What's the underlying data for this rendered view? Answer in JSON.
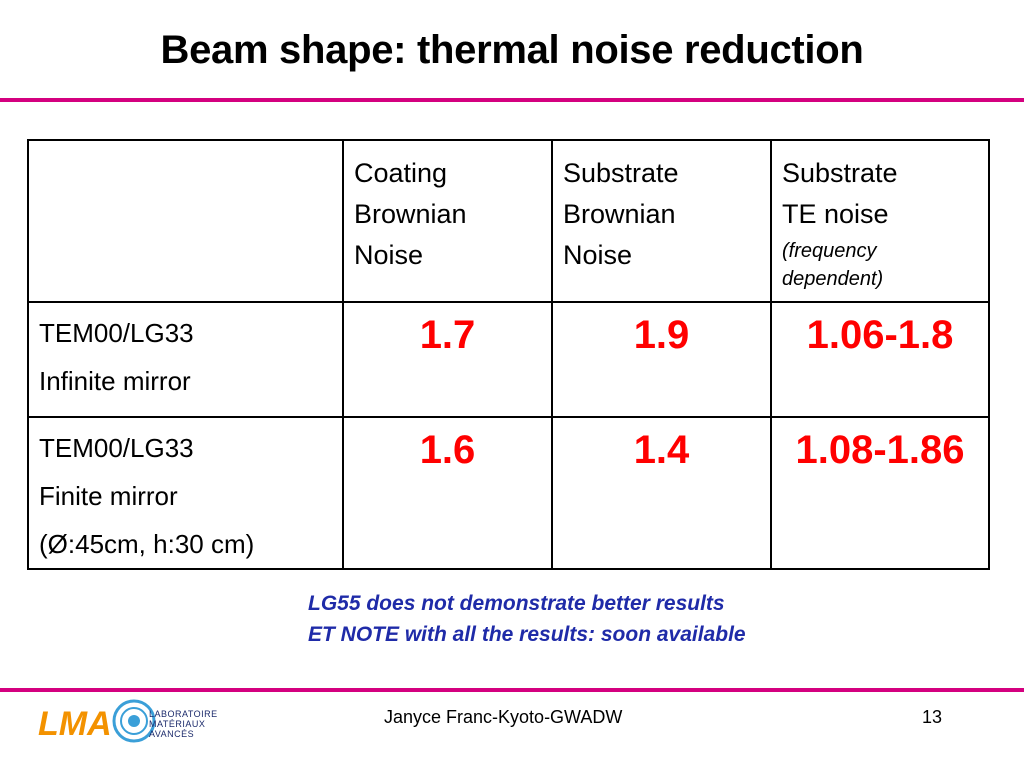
{
  "slide": {
    "title": "Beam shape: thermal noise reduction",
    "table": {
      "headers": [
        {
          "lines": [
            "Coating",
            "Brownian",
            "Noise"
          ]
        },
        {
          "lines": [
            "Substrate",
            "Brownian",
            "Noise"
          ]
        },
        {
          "lines": [
            "Substrate",
            "TE noise"
          ],
          "sub": [
            "(frequency",
            "dependent)"
          ]
        }
      ],
      "rows": [
        {
          "label": [
            "TEM00/LG33",
            "Infinite mirror"
          ],
          "values": [
            "1.7",
            "1.9",
            "1.06-1.8"
          ]
        },
        {
          "label": [
            "TEM00/LG33",
            "Finite mirror",
            "(Ø:45cm, h:30 cm)"
          ],
          "values": [
            "1.6",
            "1.4",
            "1.08-1.86"
          ]
        }
      ]
    },
    "notes": [
      "LG55 does not demonstrate better results",
      "ET NOTE with all the results: soon available"
    ],
    "footer": "Janyce Franc-Kyoto-GWADW",
    "page_number": "13",
    "logo": {
      "mark": "LMA",
      "lines": [
        "LABORATOIRE",
        "MATÉRIAUX",
        "AVANCÉS"
      ],
      "icon": "lma-logo"
    }
  },
  "colors": {
    "accent_rule": "#d4007f",
    "value_red": "#ff0000",
    "note_blue": "#1f2ba8",
    "logo_orange": "#f39200",
    "logo_blue": "#3a9fd8"
  }
}
